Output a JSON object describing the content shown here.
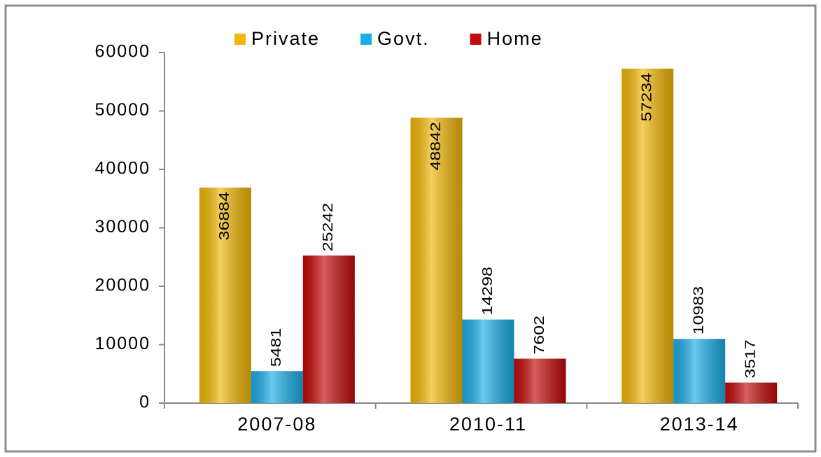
{
  "chart_data": {
    "type": "bar",
    "categories": [
      "2007-08",
      "2010-11",
      "2013-14"
    ],
    "series": [
      {
        "name": "Private",
        "color": "#f2b705",
        "values": [
          36884,
          48842,
          57234
        ]
      },
      {
        "name": "Govt.",
        "color": "#1aaee8",
        "values": [
          5481,
          14298,
          10983
        ]
      },
      {
        "name": "Home",
        "color": "#c40a0a",
        "values": [
          25242,
          7602,
          3517
        ]
      }
    ],
    "ylim": [
      0,
      60000
    ],
    "yticks": [
      0,
      10000,
      20000,
      30000,
      40000,
      50000,
      60000
    ],
    "grid": false,
    "legend": "top"
  }
}
